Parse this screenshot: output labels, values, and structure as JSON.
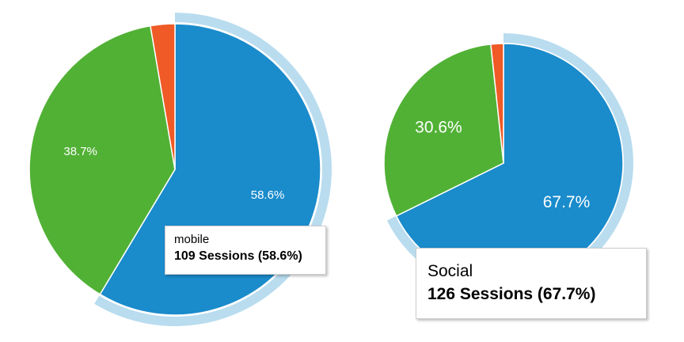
{
  "colors": {
    "blue": "#1a8bcb",
    "green": "#51b135",
    "orange": "#ef5a26",
    "highlight": "#b9dcef",
    "label": "#ffffff"
  },
  "chart_data": [
    {
      "type": "pie",
      "slices": [
        {
          "name": "mobile",
          "value": 58.6,
          "label": "58.6%",
          "color": "#1a8bcb",
          "highlighted": true
        },
        {
          "name": "",
          "value": 38.7,
          "label": "38.7%",
          "color": "#51b135"
        },
        {
          "name": "",
          "value": 2.7,
          "label": "",
          "color": "#ef5a26"
        }
      ],
      "tooltip": {
        "category": "mobile",
        "value": "109 Sessions (58.6%)"
      }
    },
    {
      "type": "pie",
      "slices": [
        {
          "name": "Social",
          "value": 67.7,
          "label": "67.7%",
          "color": "#1a8bcb",
          "highlighted": true
        },
        {
          "name": "",
          "value": 30.6,
          "label": "30.6%",
          "color": "#51b135"
        },
        {
          "name": "",
          "value": 1.7,
          "label": "",
          "color": "#ef5a26"
        }
      ],
      "tooltip": {
        "category": "Social",
        "value": "126 Sessions (67.7%)"
      }
    }
  ]
}
